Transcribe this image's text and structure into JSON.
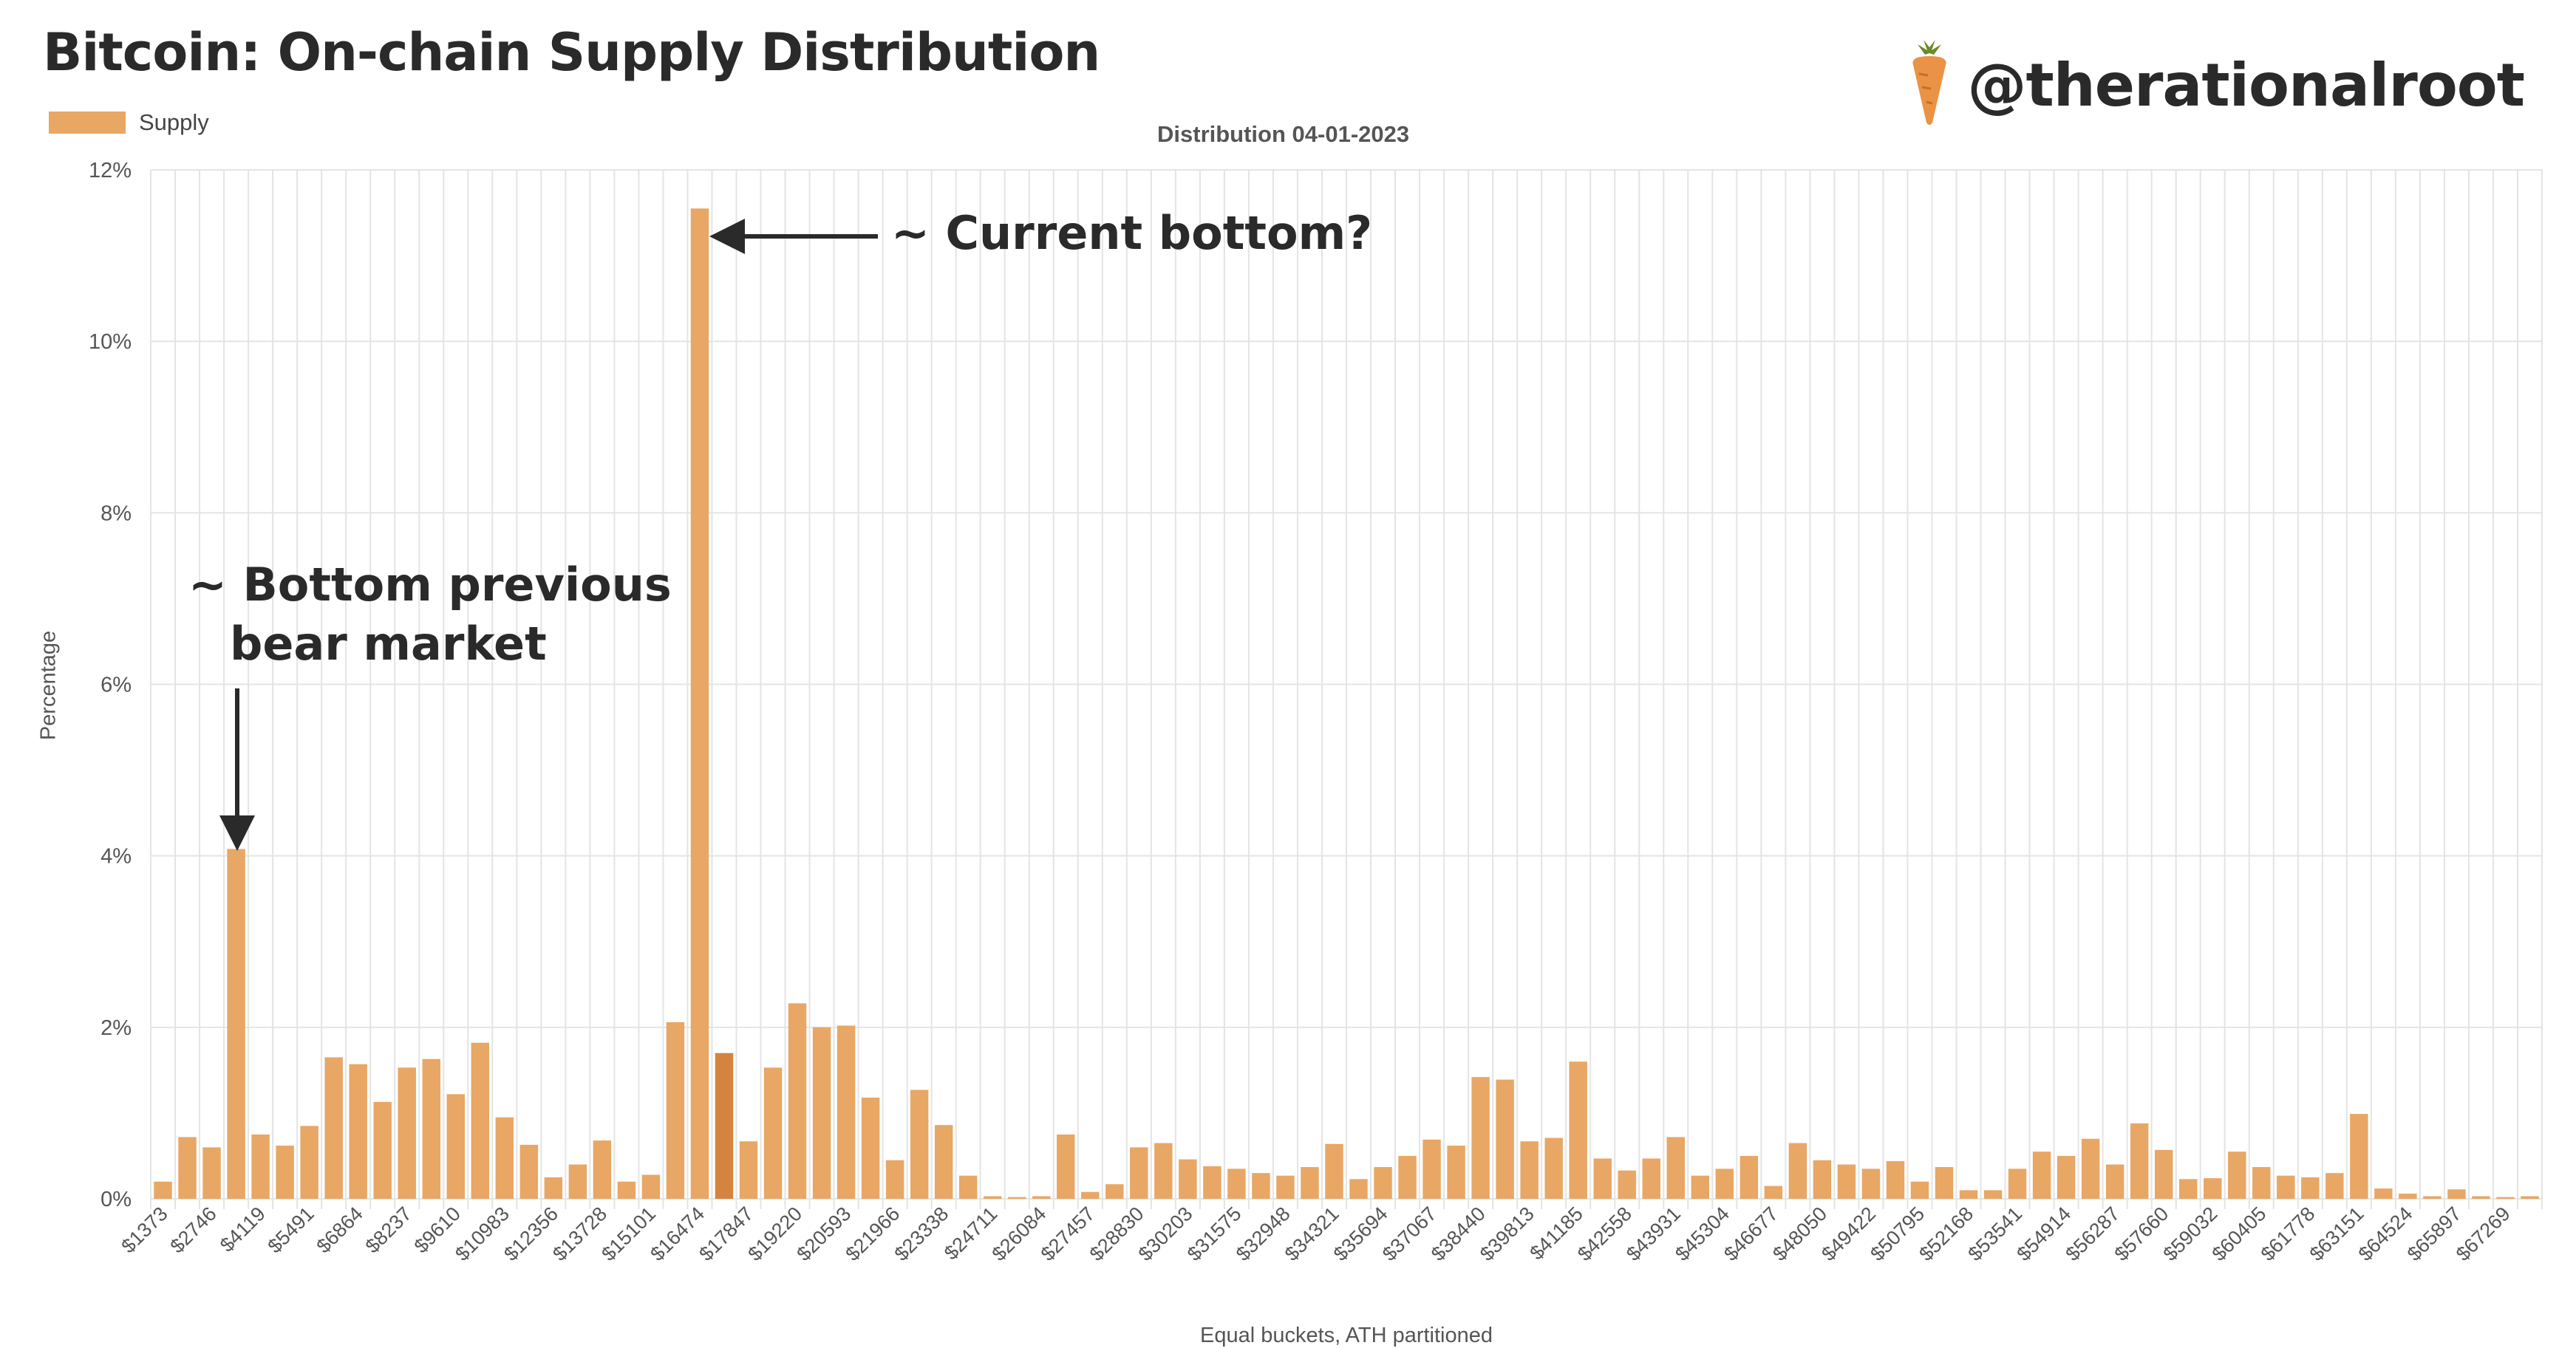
{
  "header": {
    "title": "Bitcoin: On-chain Supply Distribution",
    "handle": "@therationalroot"
  },
  "annotations": {
    "current_bottom": "~ Current bottom?",
    "previous_bottom_line1": "~ Bottom previous",
    "previous_bottom_line2": "bear market"
  },
  "colors": {
    "bar": "#e8a765",
    "highlight_bar": "#d4843f",
    "grid": "#e4e4e4",
    "text": "#2a2a2a"
  },
  "icons": {
    "logo": "carrot-icon"
  },
  "chart_data": {
    "type": "bar",
    "title": "Distribution 04-01-2023",
    "xlabel": "Equal buckets, ATH partitioned",
    "ylabel": "Percentage",
    "legend": [
      "Supply"
    ],
    "legend_position": "top-left",
    "grid": true,
    "ylim": [
      0,
      12
    ],
    "yticks": [
      "0%",
      "2%",
      "4%",
      "6%",
      "8%",
      "10%",
      "12%"
    ],
    "x_tick_labels": [
      "$1373",
      "$2746",
      "$4119",
      "$5491",
      "$6864",
      "$8237",
      "$9610",
      "$10983",
      "$12356",
      "$13728",
      "$15101",
      "$16474",
      "$17847",
      "$19220",
      "$20593",
      "$21966",
      "$23338",
      "$24711",
      "$26084",
      "$27457",
      "$28830",
      "$30203",
      "$31575",
      "$32948",
      "$34321",
      "$35694",
      "$37067",
      "$38440",
      "$39813",
      "$41185",
      "$42558",
      "$43931",
      "$45304",
      "$46677",
      "$48050",
      "$49422",
      "$50795",
      "$52168",
      "$53541",
      "$54914",
      "$56287",
      "$57660",
      "$59032",
      "$60405",
      "$61778",
      "$63151",
      "$64524",
      "$65897",
      "$67269"
    ],
    "series": [
      {
        "name": "Supply",
        "values": [
          0.2,
          0.72,
          0.6,
          4.08,
          0.75,
          0.62,
          0.85,
          1.65,
          1.57,
          1.13,
          1.53,
          1.63,
          1.22,
          1.82,
          0.95,
          0.63,
          0.25,
          0.4,
          0.68,
          0.2,
          0.28,
          2.06,
          11.55,
          1.7,
          0.67,
          1.53,
          2.28,
          2.0,
          2.02,
          1.18,
          0.45,
          1.27,
          0.86,
          0.27,
          0.03,
          0.02,
          0.03,
          0.75,
          0.08,
          0.17,
          0.6,
          0.65,
          0.46,
          0.38,
          0.35,
          0.3,
          0.27,
          0.37,
          0.64,
          0.23,
          0.37,
          0.5,
          0.69,
          0.62,
          1.42,
          1.39,
          0.67,
          0.71,
          1.6,
          0.47,
          0.33,
          0.47,
          0.72,
          0.27,
          0.35,
          0.5,
          0.15,
          0.65,
          0.45,
          0.4,
          0.35,
          0.44,
          0.2,
          0.37,
          0.1,
          0.1,
          0.35,
          0.55,
          0.5,
          0.7,
          0.4,
          0.88,
          0.57,
          0.23,
          0.24,
          0.55,
          0.37,
          0.27,
          0.25,
          0.3,
          0.99,
          0.12,
          0.06,
          0.03,
          0.11,
          0.03,
          0.02,
          0.03
        ],
        "highlight_index": 23
      }
    ]
  }
}
